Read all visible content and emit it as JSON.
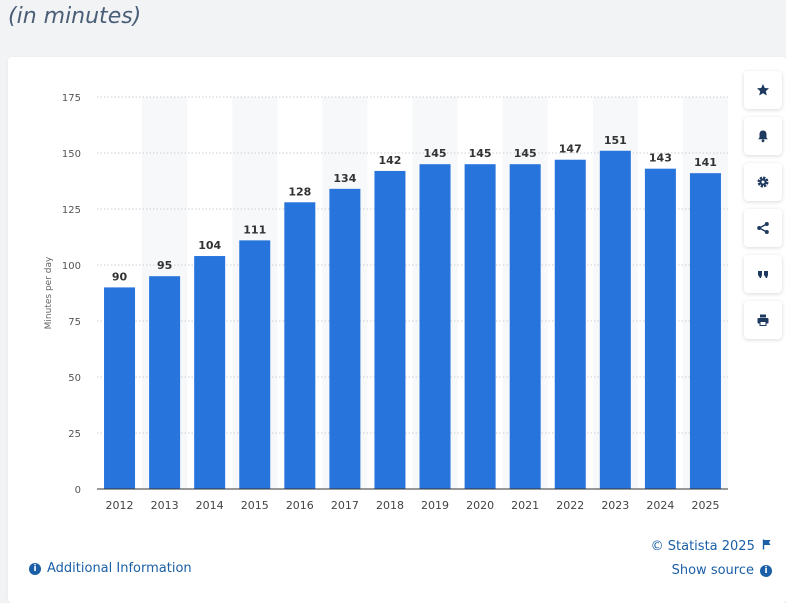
{
  "header": {
    "subtitle": "(in minutes)"
  },
  "chart_data": {
    "type": "bar",
    "categories": [
      "2012",
      "2013",
      "2014",
      "2015",
      "2016",
      "2017",
      "2018",
      "2019",
      "2020",
      "2021",
      "2022",
      "2023",
      "2024",
      "2025"
    ],
    "values": [
      90,
      95,
      104,
      111,
      128,
      134,
      142,
      145,
      145,
      145,
      147,
      151,
      143,
      141
    ],
    "ylabel": "Minutes per day",
    "xlabel": "",
    "ylim": [
      0,
      175
    ],
    "yticks": [
      0,
      25,
      50,
      75,
      100,
      125,
      150,
      175
    ],
    "grid": true,
    "bar_color": "#2874dd"
  },
  "toolbar": {
    "favorite": {
      "icon": "star-icon"
    },
    "notification": {
      "icon": "bell-icon"
    },
    "settings": {
      "icon": "gear-icon"
    },
    "share": {
      "icon": "share-icon"
    },
    "cite": {
      "icon": "quote-icon"
    },
    "print": {
      "icon": "print-icon"
    }
  },
  "footer": {
    "credit": "© Statista 2025",
    "show_source": "Show source",
    "additional_info": "Additional Information"
  },
  "colors": {
    "accent": "#1b5fa6",
    "bar": "#2874dd",
    "subtitle": "#4a5e78"
  }
}
